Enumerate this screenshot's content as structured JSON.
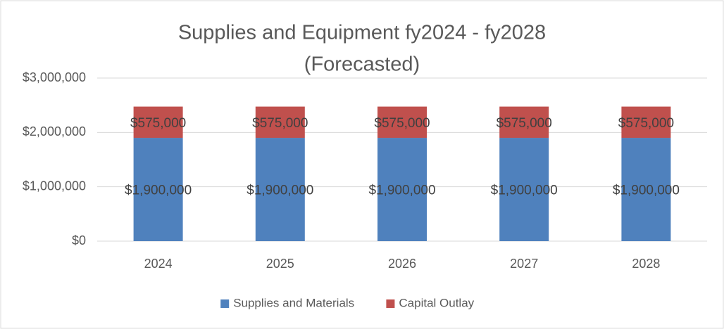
{
  "chart_data": {
    "type": "stacked_bar",
    "title": "Supplies and Equipment fy2024 - fy2028",
    "subtitle": "(Forecasted)",
    "categories": [
      "2024",
      "2025",
      "2026",
      "2027",
      "2028"
    ],
    "series": [
      {
        "name": "Supplies and Materials",
        "color": "#4f81bd",
        "values": [
          1900000,
          1900000,
          1900000,
          1900000,
          1900000
        ],
        "value_labels": [
          "$1,900,000",
          "$1,900,000",
          "$1,900,000",
          "$1,900,000",
          "$1,900,000"
        ]
      },
      {
        "name": "Capital Outlay",
        "color": "#c0504d",
        "values": [
          575000,
          575000,
          575000,
          575000,
          575000
        ],
        "value_labels": [
          "$575,000",
          "$575,000",
          "$575,000",
          "$575,000",
          "$575,000"
        ]
      }
    ],
    "ylim": [
      0,
      3000000
    ],
    "yticks": [
      {
        "value": 0,
        "label": "$0"
      },
      {
        "value": 1000000,
        "label": "$1,000,000"
      },
      {
        "value": 2000000,
        "label": "$2,000,000"
      },
      {
        "value": 3000000,
        "label": "$3,000,000"
      }
    ],
    "grid": true,
    "legend": "bottom"
  }
}
